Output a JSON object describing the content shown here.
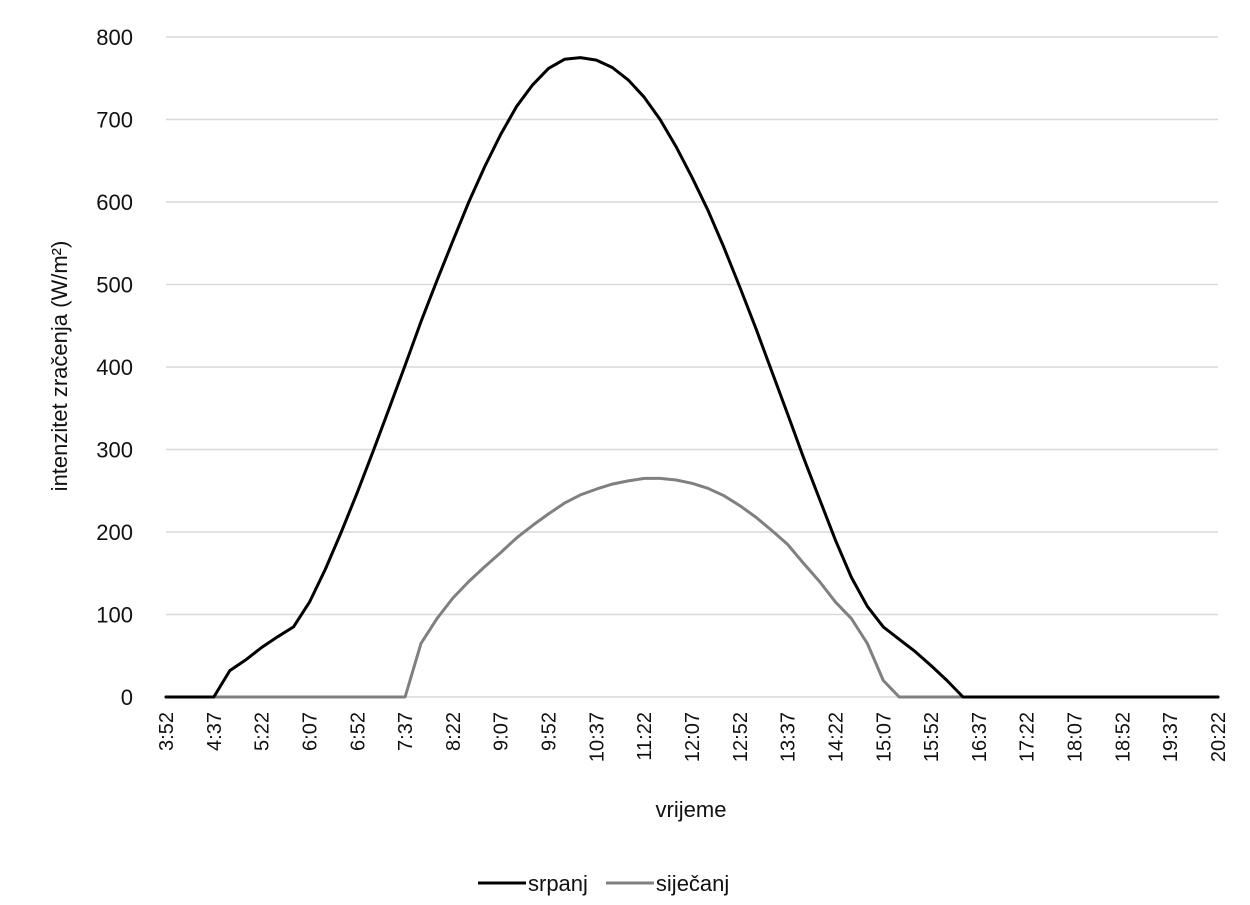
{
  "chart_data": {
    "type": "line",
    "xlabel": "vrijeme",
    "ylabel": "intenzitet zračenja (W/m²)",
    "ylim": [
      0,
      800
    ],
    "yticks": [
      0,
      100,
      200,
      300,
      400,
      500,
      600,
      700,
      800
    ],
    "grid": true,
    "legend_position": "bottom",
    "x_tick_labels": [
      "3:52",
      "4:37",
      "5:22",
      "6:07",
      "6:52",
      "7:37",
      "8:22",
      "9:07",
      "9:52",
      "10:37",
      "11:22",
      "12:07",
      "12:52",
      "13:37",
      "14:22",
      "15:07",
      "15:52",
      "16:37",
      "17:22",
      "18:07",
      "18:52",
      "19:37",
      "20:22"
    ],
    "x": [
      "3:52",
      "4:07",
      "4:22",
      "4:37",
      "4:52",
      "5:07",
      "5:22",
      "5:37",
      "5:52",
      "6:07",
      "6:22",
      "6:37",
      "6:52",
      "7:07",
      "7:22",
      "7:37",
      "7:52",
      "8:07",
      "8:22",
      "8:37",
      "8:52",
      "9:07",
      "9:22",
      "9:37",
      "9:52",
      "10:07",
      "10:22",
      "10:37",
      "10:52",
      "11:07",
      "11:22",
      "11:37",
      "11:52",
      "12:07",
      "12:22",
      "12:37",
      "12:52",
      "13:07",
      "13:22",
      "13:37",
      "13:52",
      "14:07",
      "14:22",
      "14:37",
      "14:52",
      "15:07",
      "15:22",
      "15:37",
      "15:52",
      "16:07",
      "16:22",
      "16:37",
      "16:52",
      "17:07",
      "17:22",
      "17:37",
      "17:52",
      "18:07",
      "18:22",
      "18:37",
      "18:52",
      "19:07",
      "19:22",
      "19:37",
      "19:52",
      "20:07",
      "20:22"
    ],
    "series": [
      {
        "name": "srpanj",
        "color": "#000000",
        "values": [
          0,
          0,
          0,
          0,
          32,
          45,
          60,
          73,
          85,
          115,
          155,
          200,
          248,
          298,
          350,
          402,
          455,
          505,
          553,
          600,
          643,
          682,
          716,
          742,
          762,
          773,
          775,
          772,
          763,
          748,
          727,
          700,
          667,
          630,
          590,
          545,
          497,
          447,
          395,
          343,
          290,
          240,
          190,
          145,
          110,
          85,
          70,
          55,
          38,
          20,
          0,
          0,
          0,
          0,
          0,
          0,
          0,
          0,
          0,
          0,
          0,
          0,
          0,
          0,
          0,
          0,
          0
        ]
      },
      {
        "name": "siječanj",
        "color": "#808080",
        "values": [
          0,
          0,
          0,
          0,
          0,
          0,
          0,
          0,
          0,
          0,
          0,
          0,
          0,
          0,
          0,
          0,
          65,
          95,
          120,
          140,
          158,
          175,
          193,
          208,
          222,
          235,
          245,
          252,
          258,
          262,
          265,
          265,
          263,
          259,
          253,
          244,
          232,
          218,
          202,
          185,
          162,
          140,
          115,
          95,
          65,
          20,
          0,
          0,
          0,
          0,
          0,
          0,
          0,
          0,
          0,
          0,
          0,
          0,
          0,
          0,
          0,
          0,
          0,
          0,
          0,
          0,
          0
        ]
      }
    ]
  }
}
